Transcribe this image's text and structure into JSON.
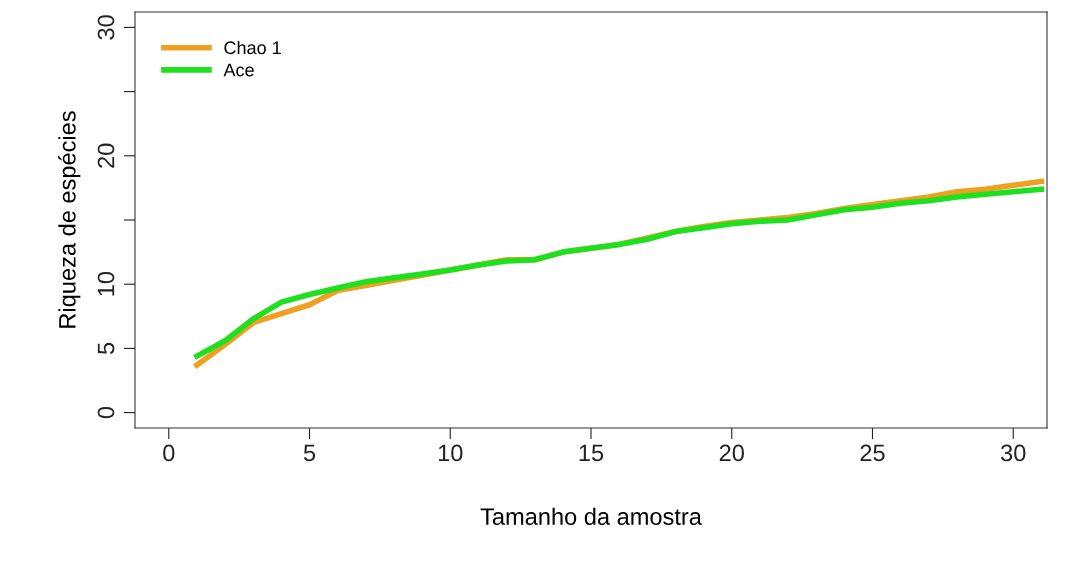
{
  "chart_data": {
    "type": "line",
    "xlabel": "Tamanho da amostra",
    "ylabel": "Riqueza de espécies",
    "x": [
      1,
      2,
      3,
      4,
      5,
      6,
      7,
      8,
      9,
      10,
      11,
      12,
      13,
      14,
      15,
      16,
      17,
      18,
      19,
      20,
      21,
      22,
      23,
      24,
      25,
      26,
      27,
      28,
      29,
      30,
      31
    ],
    "series": [
      {
        "name": "Chao 1",
        "color": "#f0a020",
        "values": [
          3.7,
          5.3,
          7.0,
          7.7,
          8.4,
          9.5,
          9.9,
          10.3,
          10.7,
          11.1,
          11.5,
          11.9,
          11.9,
          12.5,
          12.8,
          13.1,
          13.6,
          14.1,
          14.5,
          14.8,
          15.0,
          15.2,
          15.5,
          15.9,
          16.2,
          16.5,
          16.8,
          17.2,
          17.4,
          17.7,
          18.0
        ]
      },
      {
        "name": "Ace",
        "color": "#1ee01e",
        "values": [
          4.4,
          5.6,
          7.3,
          8.6,
          9.2,
          9.7,
          10.2,
          10.5,
          10.8,
          11.1,
          11.5,
          11.8,
          11.9,
          12.5,
          12.8,
          13.1,
          13.5,
          14.1,
          14.4,
          14.7,
          14.9,
          15.0,
          15.4,
          15.8,
          16.0,
          16.3,
          16.5,
          16.8,
          17.0,
          17.2,
          17.4
        ]
      }
    ],
    "xlim": [
      -1.2,
      31.2
    ],
    "ylim": [
      -1.2,
      31.2
    ],
    "xticks": [
      0,
      5,
      10,
      15,
      20,
      25,
      30
    ],
    "yticks": [
      0,
      5,
      10,
      {
        "value": 15,
        "label": null
      },
      20,
      {
        "value": 25,
        "label": null
      },
      30
    ],
    "legend": "top left",
    "grid": false,
    "marker": "none",
    "line_style": "solid"
  }
}
